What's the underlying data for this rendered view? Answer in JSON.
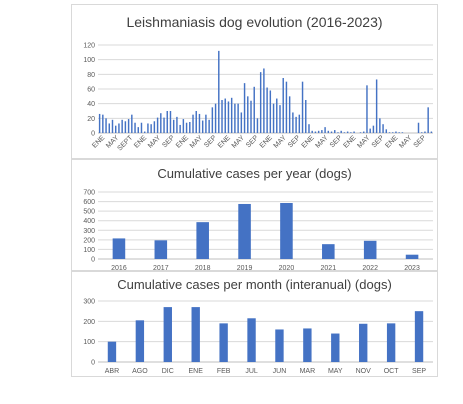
{
  "chart_data": [
    {
      "type": "bar",
      "title": "Leishmaniasis dog evolution  (2016-2023)",
      "ylim": [
        0,
        120
      ],
      "yticks": [
        0,
        20,
        40,
        60,
        80,
        100,
        120
      ],
      "grid": true,
      "legend": "none",
      "color": "#4472C4",
      "x_labels": [
        "ENE",
        "MAY",
        "SEPT",
        "ENE",
        "MAY",
        "SEP",
        "ENE",
        "MAY",
        "SEP",
        "ENE",
        "MAY",
        "SEP",
        "ENE",
        "MAY",
        "SEP",
        "ENE",
        "MAY",
        "SEP",
        "ENE",
        "MAY",
        "SEP",
        "ENE",
        "MAY",
        "SEP"
      ],
      "values": [
        26,
        25,
        20,
        13,
        18,
        10,
        13,
        18,
        16,
        19,
        25,
        14,
        8,
        14,
        2,
        13,
        12,
        16,
        21,
        27,
        21,
        30,
        30,
        18,
        22,
        11,
        19,
        14,
        15,
        25,
        30,
        26,
        17,
        25,
        18,
        35,
        40,
        112,
        45,
        47,
        43,
        48,
        40,
        40,
        28,
        68,
        50,
        44,
        63,
        20,
        83,
        88,
        62,
        58,
        40,
        47,
        38,
        75,
        70,
        50,
        28,
        22,
        25,
        70,
        45,
        12,
        3,
        2,
        3,
        4,
        8,
        3,
        2,
        4,
        1,
        3,
        1,
        2,
        1,
        2,
        0,
        1,
        2,
        65,
        6,
        10,
        73,
        20,
        12,
        5,
        1,
        1,
        2,
        1,
        1,
        0,
        0,
        0,
        0,
        14,
        1,
        2,
        35,
        2
      ]
    },
    {
      "type": "bar",
      "title": "Cumulative cases per year (dogs)",
      "categories": [
        "2016",
        "2017",
        "2018",
        "2019",
        "2020",
        "2021",
        "2022",
        "2023"
      ],
      "values": [
        215,
        195,
        385,
        575,
        585,
        155,
        190,
        45
      ],
      "ylim": [
        0,
        700
      ],
      "yticks": [
        0,
        100,
        200,
        300,
        400,
        500,
        600,
        700
      ],
      "grid": true,
      "legend": "none",
      "color": "#4472C4"
    },
    {
      "type": "bar",
      "title": "Cumulative cases per month (interanual) (dogs)",
      "categories": [
        "ABR",
        "AGO",
        "DIC",
        "ENE",
        "FEB",
        "JUL",
        "JUN",
        "MAR",
        "MAY",
        "NOV",
        "OCT",
        "SEP"
      ],
      "values": [
        100,
        205,
        270,
        270,
        190,
        215,
        160,
        165,
        140,
        188,
        190,
        250
      ],
      "ylim": [
        0,
        300
      ],
      "yticks": [
        0,
        100,
        200,
        300
      ],
      "grid": true,
      "legend": "none",
      "color": "#4472C4"
    }
  ]
}
